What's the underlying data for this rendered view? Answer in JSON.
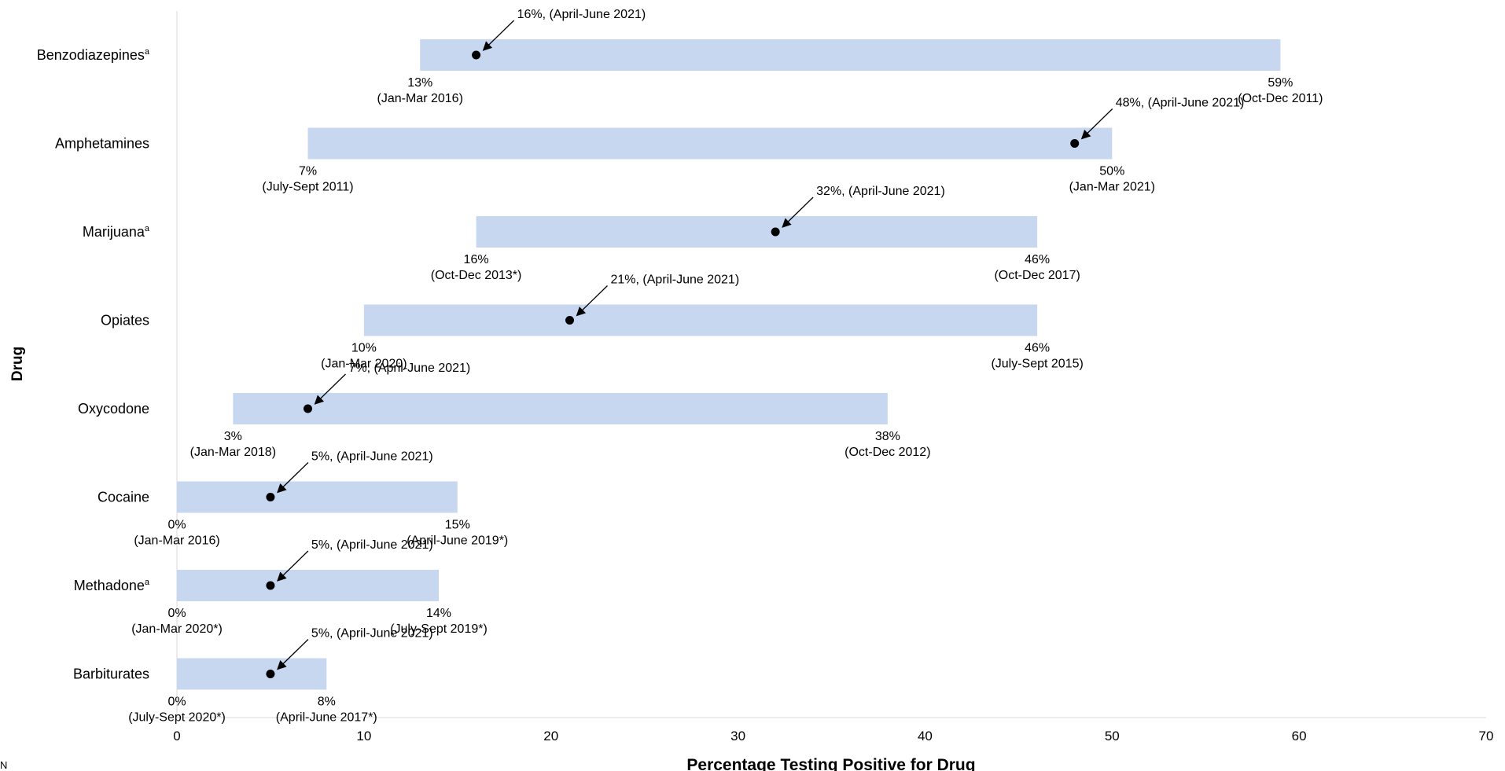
{
  "chart_data": {
    "type": "bar",
    "subtype": "range-bar-with-current-point",
    "xlabel": "Percentage Testing Positive for Drug",
    "ylabel": "Drug",
    "xlim": [
      0,
      70
    ],
    "xticks": [
      "0",
      "10",
      "20",
      "30",
      "40",
      "50",
      "60",
      "70"
    ],
    "bar_color": "#c6d7ef",
    "point_color": "#000000",
    "rows": [
      {
        "drug": "Benzodiazepines",
        "sup": "a",
        "min": 13,
        "min_pct": "13%",
        "min_period": "(Jan-Mar 2016)",
        "max": 59,
        "max_pct": "59%",
        "max_period": "(Oct-Dec 2011)",
        "current": 16,
        "current_label": "16%, (April-June 2021)"
      },
      {
        "drug": "Amphetamines",
        "sup": "",
        "min": 7,
        "min_pct": "7%",
        "min_period": "(July-Sept 2011)",
        "max": 50,
        "max_pct": "50%",
        "max_period": "(Jan-Mar 2021)",
        "current": 48,
        "current_label": "48%, (April-June 2021)"
      },
      {
        "drug": "Marijuana",
        "sup": "a",
        "min": 16,
        "min_pct": "16%",
        "min_period": "(Oct-Dec 2013*)",
        "max": 46,
        "max_pct": "46%",
        "max_period": "(Oct-Dec 2017)",
        "current": 32,
        "current_label": "32%, (April-June 2021)"
      },
      {
        "drug": "Opiates",
        "sup": "",
        "min": 10,
        "min_pct": "10%",
        "min_period": "(Jan-Mar 2020)",
        "max": 46,
        "max_pct": "46%",
        "max_period": "(July-Sept 2015)",
        "current": 21,
        "current_label": "21%, (April-June 2021)"
      },
      {
        "drug": "Oxycodone",
        "sup": "",
        "min": 3,
        "min_pct": "3%",
        "min_period": "(Jan-Mar 2018)",
        "max": 38,
        "max_pct": "38%",
        "max_period": "(Oct-Dec 2012)",
        "current": 7,
        "current_label": "7%, (April-June 2021)"
      },
      {
        "drug": "Cocaine",
        "sup": "",
        "min": 0,
        "min_pct": "0%",
        "min_period": "(Jan-Mar 2016)",
        "max": 15,
        "max_pct": "15%",
        "max_period": "(April-June 2019*)",
        "current": 5,
        "current_label": "5%, (April-June 2021)"
      },
      {
        "drug": "Methadone",
        "sup": "a",
        "min": 0,
        "min_pct": "0%",
        "min_period": "(Jan-Mar 2020*)",
        "max": 14,
        "max_pct": "14%",
        "max_period": "(July-Sept 2019*)",
        "current": 5,
        "current_label": "5%, (April-June 2021)"
      },
      {
        "drug": "Barbiturates",
        "sup": "",
        "min": 0,
        "min_pct": "0%",
        "min_period": "(July-Sept 2020*)",
        "max": 8,
        "max_pct": "8%",
        "max_period": "(April-June 2017*)",
        "current": 5,
        "current_label": "5%, (April-June 2021)"
      }
    ]
  },
  "footnote": "N"
}
